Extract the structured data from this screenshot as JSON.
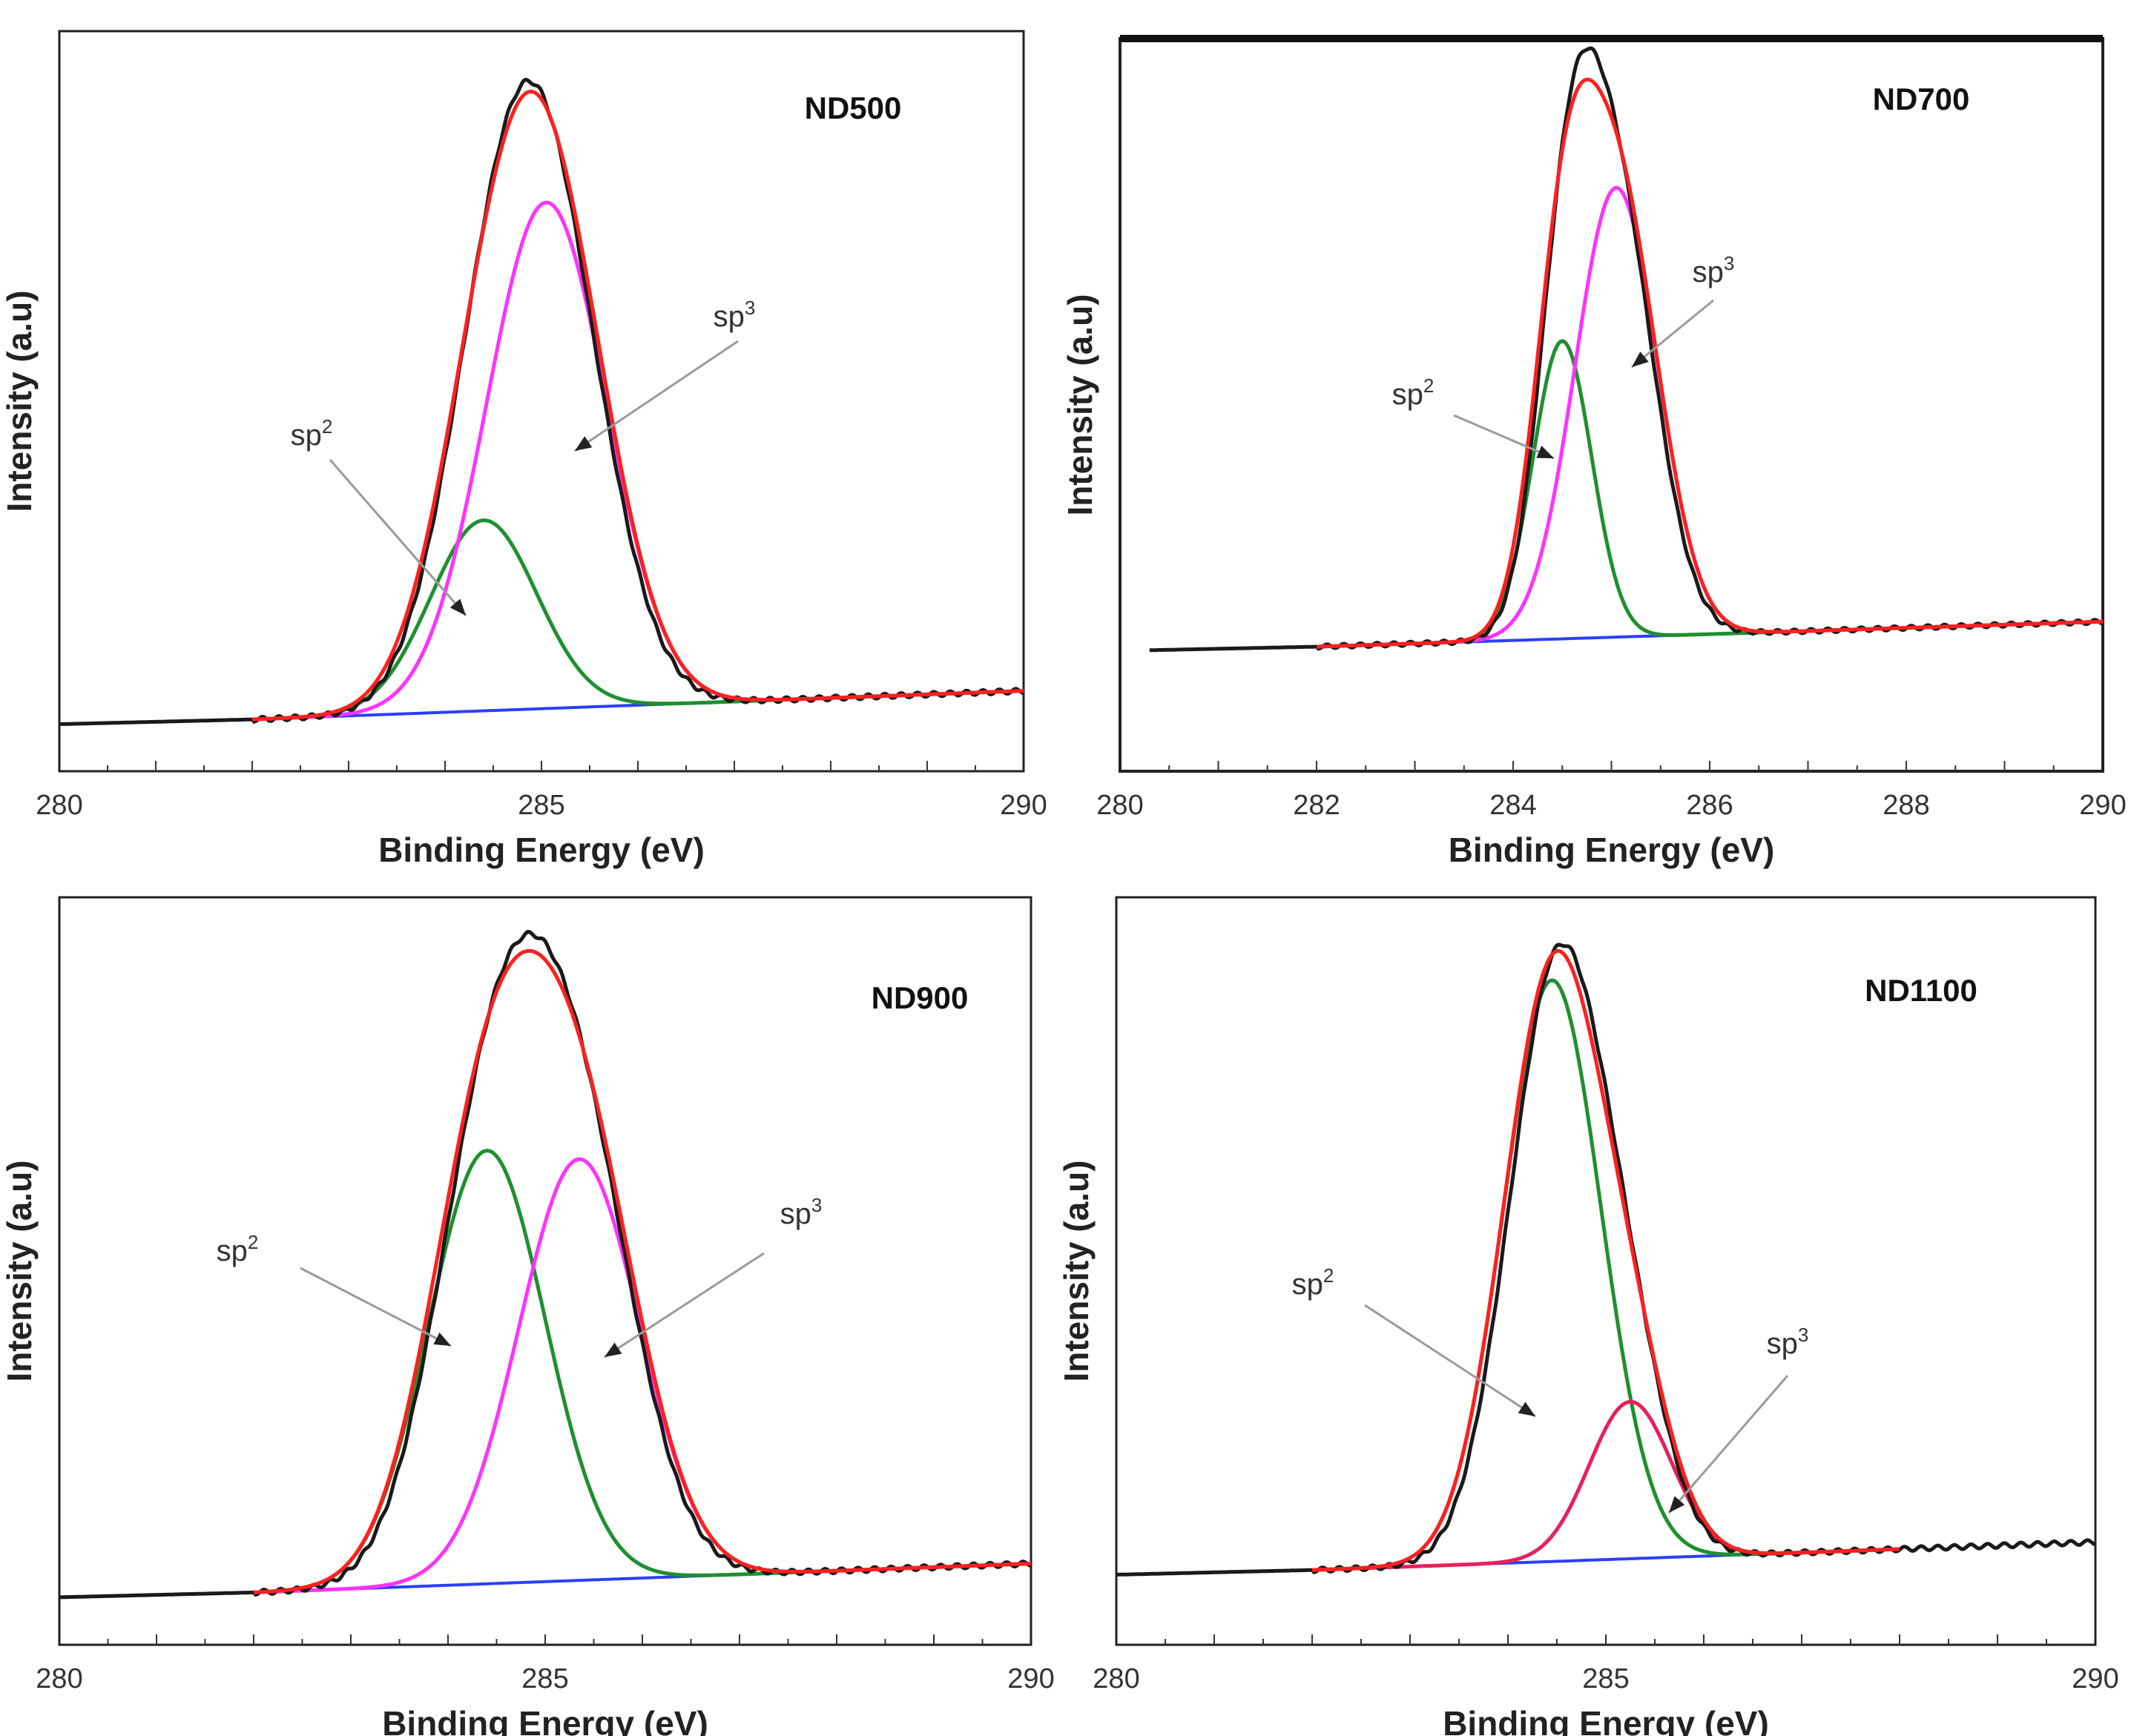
{
  "chart_data": [
    {
      "type": "line",
      "title": "ND500",
      "xlabel": "Binding Energy (eV)",
      "ylabel": "Intensity (a.u)",
      "xlim": [
        280,
        290
      ],
      "ylim": [
        0,
        1.1
      ],
      "xticks": [
        "280",
        "285",
        "290"
      ],
      "baseline_start": 280,
      "peaks": {
        "sp2": {
          "center": 284.4,
          "height": 0.32,
          "sigma": 0.55
        },
        "sp3": {
          "center": 285.05,
          "height": 0.85,
          "sigma": 0.62
        }
      },
      "annotations": [
        {
          "base": "sp",
          "sup": "2"
        },
        {
          "base": "sp",
          "sup": "3"
        }
      ],
      "series": [
        {
          "name": "experimental",
          "color": "#1a1a1a"
        },
        {
          "name": "fit envelope",
          "color": "#ff2020"
        },
        {
          "name": "sp2",
          "color": "#1f8f2f"
        },
        {
          "name": "sp3",
          "color": "#ff33ff"
        },
        {
          "name": "background",
          "color": "#2a3fff"
        }
      ]
    },
    {
      "type": "line",
      "title": "ND700",
      "xlabel": "Binding Energy (eV)",
      "ylabel": "Intensity (a.u)",
      "xlim": [
        280,
        290
      ],
      "ylim": [
        0,
        1.1
      ],
      "xticks": [
        "280",
        "282",
        "284",
        "286",
        "288",
        "290"
      ],
      "baseline_start": 280.3,
      "peaks": {
        "sp2": {
          "center": 284.5,
          "height": 0.57,
          "sigma": 0.3
        },
        "sp3": {
          "center": 285.05,
          "height": 0.86,
          "sigma": 0.42
        }
      },
      "annotations": [
        {
          "base": "sp",
          "sup": "2"
        },
        {
          "base": "sp",
          "sup": "3"
        }
      ],
      "series": [
        {
          "name": "experimental",
          "color": "#1a1a1a"
        },
        {
          "name": "fit envelope",
          "color": "#ff2020"
        },
        {
          "name": "sp2",
          "color": "#1f8f2f"
        },
        {
          "name": "sp3",
          "color": "#ff33ff"
        },
        {
          "name": "background",
          "color": "#2a3fff"
        }
      ]
    },
    {
      "type": "line",
      "title": "ND900",
      "xlabel": "Binding Energy (eV)",
      "ylabel": "Intensity (a.u)",
      "xlim": [
        280,
        290
      ],
      "ylim": [
        0,
        1.1
      ],
      "xticks": [
        "280",
        "285",
        "290"
      ],
      "baseline_start": 280,
      "peaks": {
        "sp2": {
          "center": 284.4,
          "height": 0.72,
          "sigma": 0.6
        },
        "sp3": {
          "center": 285.35,
          "height": 0.7,
          "sigma": 0.62
        }
      },
      "annotations": [
        {
          "base": "sp",
          "sup": "2"
        },
        {
          "base": "sp",
          "sup": "3"
        }
      ],
      "series": [
        {
          "name": "experimental",
          "color": "#1a1a1a"
        },
        {
          "name": "fit envelope",
          "color": "#ff2020"
        },
        {
          "name": "sp2",
          "color": "#1f8f2f"
        },
        {
          "name": "sp3",
          "color": "#ff33ff"
        },
        {
          "name": "background",
          "color": "#2a3fff"
        }
      ]
    },
    {
      "type": "line",
      "title": "ND1100",
      "xlabel": "Binding Energy (eV)",
      "ylabel": "Intensity (a.u)",
      "xlim": [
        280,
        290
      ],
      "ylim": [
        0,
        1.1
      ],
      "xticks": [
        "280",
        "285",
        "290"
      ],
      "baseline_start": 280,
      "peaks": {
        "sp2": {
          "center": 284.45,
          "height": 1.0,
          "sigma": 0.5
        },
        "sp3": {
          "center": 285.25,
          "height": 0.27,
          "sigma": 0.42
        }
      },
      "annotations": [
        {
          "base": "sp",
          "sup": "2"
        },
        {
          "base": "sp",
          "sup": "3"
        }
      ],
      "series": [
        {
          "name": "experimental",
          "color": "#1a1a1a"
        },
        {
          "name": "fit envelope",
          "color": "#ff2020"
        },
        {
          "name": "sp2",
          "color": "#1f8f2f"
        },
        {
          "name": "sp3",
          "color": "#e8205a"
        },
        {
          "name": "background",
          "color": "#2a3fff"
        }
      ]
    }
  ]
}
